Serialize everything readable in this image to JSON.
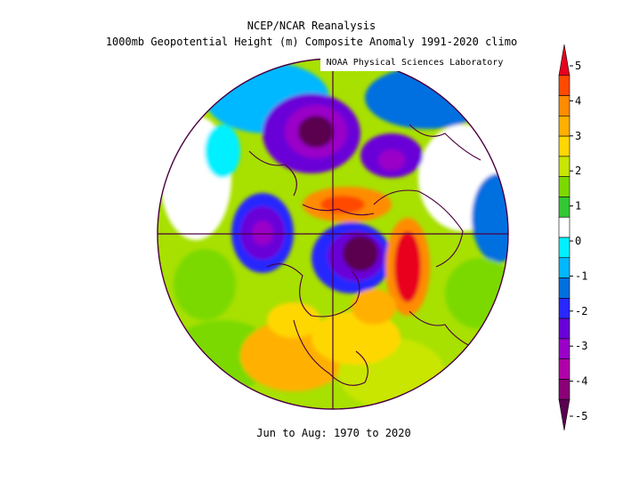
{
  "header": {
    "title_line1": "NCEP/NCAR Reanalysis",
    "title_line2": "1000mb Geopotential Height (m) Composite Anomaly 1991-2020 climo",
    "credit": "NOAA Physical Sciences Laboratory"
  },
  "footer": {
    "period": "Jun to Aug: 1970 to 2020"
  },
  "colorbar": {
    "labels": [
      "5",
      "4",
      "3",
      "2",
      "1",
      "0",
      "-1",
      "-2",
      "-3",
      "-4",
      "-5"
    ],
    "colors": [
      "#e8001f",
      "#ff4a00",
      "#ff8c00",
      "#ffb000",
      "#ffd700",
      "#c8e600",
      "#7cd900",
      "#33c833",
      "#ffffff",
      "#00f0ff",
      "#00b8ff",
      "#0070e0",
      "#2828ff",
      "#6a00d8",
      "#9a00c8",
      "#b000a8",
      "#8a0078",
      "#5a0050"
    ]
  },
  "map": {
    "projection": "north-polar-stereographic",
    "colors": {
      "background": "#c8e600",
      "coast": "#4a0040"
    }
  }
}
